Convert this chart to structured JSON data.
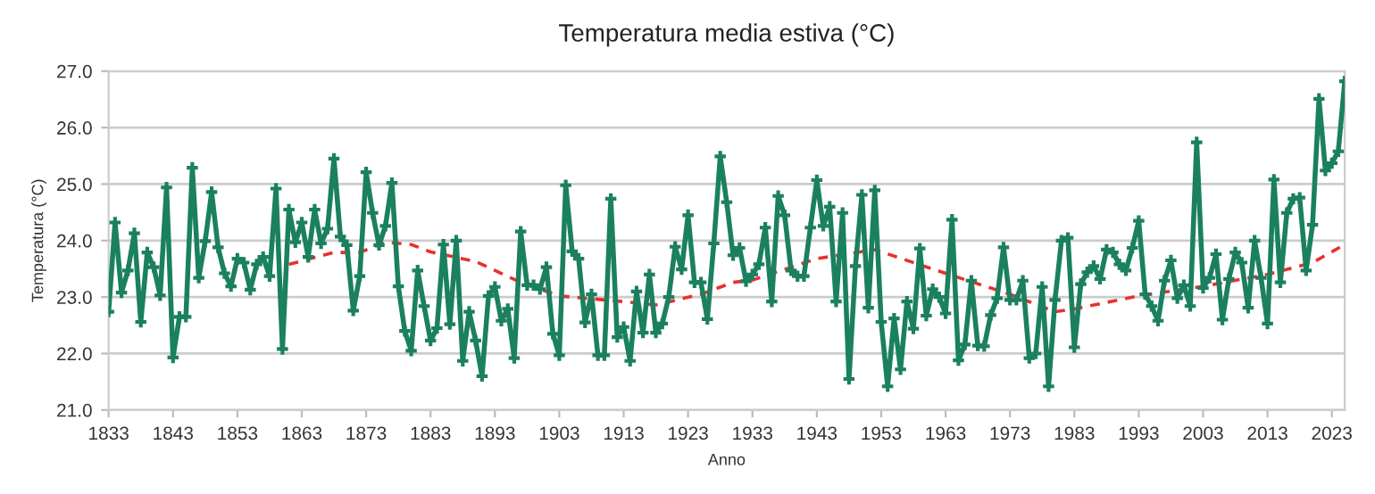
{
  "chart_data": {
    "type": "line",
    "title": "Temperatura media estiva (°C)",
    "xlabel": "Anno",
    "ylabel": "Temperatura (°C)",
    "series": [
      {
        "color": "#1b8060",
        "marker": "cross",
        "line_style": "solid",
        "x": [
          1833,
          1834,
          1835,
          1836,
          1837,
          1838,
          1839,
          1840,
          1841,
          1842,
          1843,
          1844,
          1845,
          1846,
          1847,
          1848,
          1849,
          1850,
          1851,
          1852,
          1853,
          1854,
          1855,
          1856,
          1857,
          1858,
          1859,
          1860,
          1861,
          1862,
          1863,
          1864,
          1865,
          1866,
          1867,
          1868,
          1869,
          1870,
          1871,
          1872,
          1873,
          1874,
          1875,
          1876,
          1877,
          1878,
          1879,
          1880,
          1881,
          1882,
          1883,
          1884,
          1885,
          1886,
          1887,
          1888,
          1889,
          1890,
          1891,
          1892,
          1893,
          1894,
          1895,
          1896,
          1897,
          1898,
          1899,
          1900,
          1901,
          1902,
          1903,
          1904,
          1905,
          1906,
          1907,
          1908,
          1909,
          1910,
          1911,
          1912,
          1913,
          1914,
          1915,
          1916,
          1917,
          1918,
          1919,
          1920,
          1921,
          1922,
          1923,
          1924,
          1925,
          1926,
          1927,
          1928,
          1929,
          1930,
          1931,
          1932,
          1933,
          1934,
          1935,
          1936,
          1937,
          1938,
          1939,
          1940,
          1941,
          1942,
          1943,
          1944,
          1945,
          1946,
          1947,
          1948,
          1949,
          1950,
          1951,
          1952,
          1953,
          1954,
          1955,
          1956,
          1957,
          1958,
          1959,
          1960,
          1961,
          1962,
          1963,
          1964,
          1965,
          1966,
          1967,
          1968,
          1969,
          1970,
          1971,
          1972,
          1973,
          1974,
          1975,
          1976,
          1977,
          1978,
          1979,
          1980,
          1981,
          1982,
          1983,
          1984,
          1985,
          1986,
          1987,
          1988,
          1989,
          1990,
          1991,
          1992,
          1993,
          1994,
          1995,
          1996,
          1997,
          1998,
          1999,
          2000,
          2001,
          2002,
          2003,
          2004,
          2005,
          2006,
          2007,
          2008,
          2009,
          2010,
          2011,
          2012,
          2013,
          2014,
          2015,
          2016,
          2017,
          2018,
          2019,
          2020,
          2021,
          2022,
          2023,
          2024,
          2025
        ],
        "values": [
          22.74,
          24.32,
          23.08,
          23.47,
          24.13,
          22.56,
          23.79,
          23.53,
          23.03,
          24.94,
          21.93,
          22.65,
          22.65,
          25.29,
          23.34,
          23.99,
          24.86,
          23.88,
          23.42,
          23.19,
          23.68,
          23.61,
          23.13,
          23.58,
          23.71,
          23.37,
          24.92,
          22.08,
          24.55,
          23.97,
          24.32,
          23.71,
          24.55,
          23.95,
          24.21,
          25.45,
          24.07,
          23.92,
          22.76,
          23.37,
          25.21,
          24.49,
          23.92,
          24.26,
          25.02,
          23.19,
          22.4,
          22.05,
          23.47,
          22.84,
          22.23,
          22.45,
          23.93,
          22.52,
          24.0,
          21.87,
          22.74,
          22.23,
          21.6,
          23.02,
          23.18,
          22.58,
          22.79,
          21.92,
          24.16,
          23.21,
          23.21,
          23.14,
          23.53,
          22.35,
          21.97,
          24.98,
          23.81,
          23.68,
          22.55,
          23.05,
          21.97,
          21.97,
          24.74,
          22.29,
          22.47,
          21.87,
          23.1,
          22.37,
          23.4,
          22.37,
          22.53,
          23.0,
          23.89,
          23.49,
          24.45,
          23.26,
          23.26,
          22.61,
          23.95,
          25.49,
          24.68,
          23.74,
          23.87,
          23.28,
          23.4,
          23.58,
          24.23,
          22.92,
          24.79,
          24.45,
          23.47,
          23.37,
          23.37,
          24.23,
          25.07,
          24.26,
          24.6,
          22.92,
          24.49,
          21.55,
          23.55,
          24.81,
          22.81,
          24.89,
          22.56,
          21.42,
          22.62,
          21.72,
          22.92,
          22.44,
          23.86,
          22.67,
          23.14,
          23.0,
          22.71,
          24.37,
          21.88,
          22.16,
          23.29,
          22.14,
          22.13,
          22.68,
          22.98,
          23.88,
          22.95,
          22.95,
          23.29,
          21.92,
          22.0,
          23.18,
          21.42,
          22.95,
          24.0,
          24.05,
          22.11,
          23.23,
          23.44,
          23.55,
          23.32,
          23.84,
          23.79,
          23.58,
          23.47,
          23.87,
          24.35,
          23.05,
          22.84,
          22.58,
          23.29,
          23.65,
          22.98,
          23.21,
          22.84,
          25.74,
          23.16,
          23.34,
          23.76,
          22.6,
          23.32,
          23.79,
          23.61,
          22.81,
          24.0,
          23.34,
          22.53,
          25.08,
          23.26,
          24.49,
          24.74,
          24.76,
          23.47,
          24.28,
          26.51,
          25.24,
          25.37,
          25.58,
          26.82
        ]
      },
      {
        "color": "#e8312f",
        "marker": "none",
        "line_style": "dashed",
        "x": [
          1861,
          1868,
          1872,
          1876,
          1880,
          1883,
          1890,
          1897,
          1903,
          1913,
          1918,
          1925,
          1930,
          1933,
          1943,
          1952,
          1963,
          1973,
          1980,
          1983,
          1993,
          2003,
          2013,
          2020,
          2025
        ],
        "values": [
          23.58,
          23.79,
          23.79,
          23.97,
          23.93,
          23.8,
          23.63,
          23.26,
          23.02,
          22.92,
          22.86,
          23.05,
          23.26,
          23.3,
          23.68,
          23.84,
          23.42,
          23.05,
          22.74,
          22.79,
          23.02,
          23.19,
          23.4,
          23.61,
          23.93
        ]
      }
    ],
    "xlim": [
      1833,
      2025
    ],
    "xticks": [
      1833,
      1843,
      1853,
      1863,
      1873,
      1883,
      1893,
      1903,
      1913,
      1923,
      1933,
      1943,
      1953,
      1963,
      1973,
      1983,
      1993,
      2003,
      2013,
      2023
    ],
    "ylim": [
      21,
      27
    ],
    "yticks": [
      {
        "value": 21,
        "label": "21.0"
      },
      {
        "value": 22,
        "label": "22.0"
      },
      {
        "value": 23,
        "label": "23.0"
      },
      {
        "value": 24,
        "label": "24.0"
      },
      {
        "value": 25,
        "label": "25.0"
      },
      {
        "value": 26,
        "label": "26.0"
      },
      {
        "value": 27,
        "label": "27.0"
      }
    ],
    "grid": "y"
  }
}
